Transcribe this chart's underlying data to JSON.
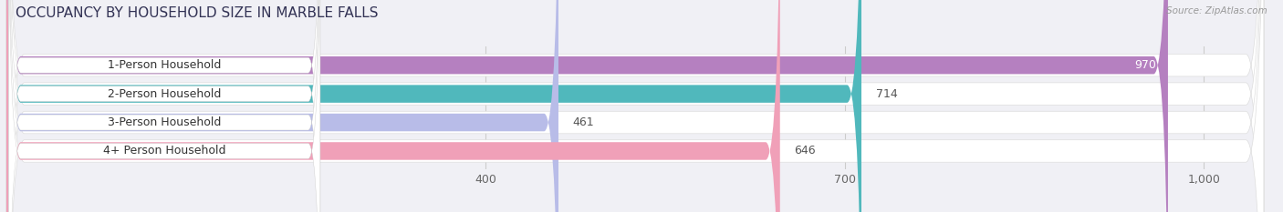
{
  "title": "OCCUPANCY BY HOUSEHOLD SIZE IN MARBLE FALLS",
  "source": "Source: ZipAtlas.com",
  "categories": [
    "1-Person Household",
    "2-Person Household",
    "3-Person Household",
    "4+ Person Household"
  ],
  "values": [
    970,
    714,
    461,
    646
  ],
  "bar_colors": [
    "#b580c0",
    "#50b8bc",
    "#b8bce8",
    "#f0a0b8"
  ],
  "xlim": [
    0,
    1050
  ],
  "xticks": [
    400,
    700,
    1000
  ],
  "xtick_labels": [
    "400",
    "700",
    "1,000"
  ],
  "title_fontsize": 11,
  "tick_fontsize": 9,
  "bar_label_fontsize": 9,
  "category_fontsize": 9,
  "bar_height": 0.62,
  "background_color": "#f0f0f5",
  "row_bg_color": "#ffffff",
  "label_box_color": "#ffffff"
}
